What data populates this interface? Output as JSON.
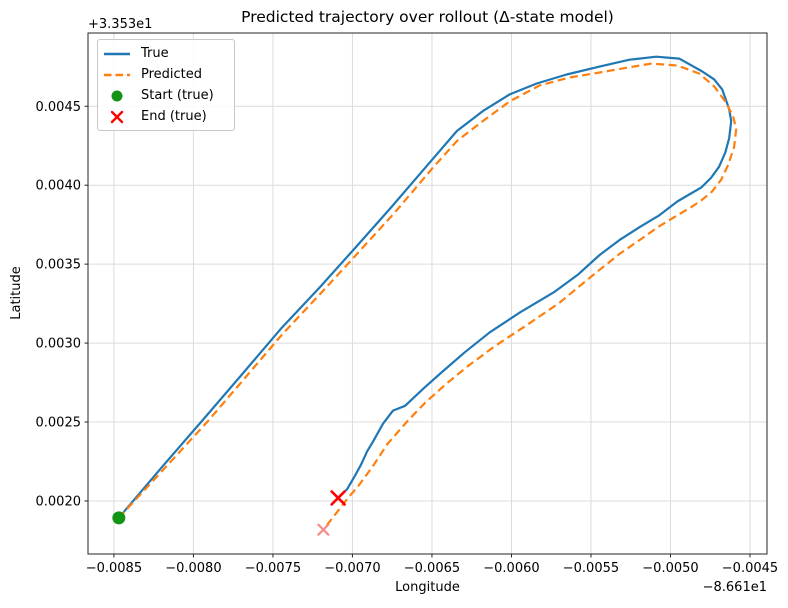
{
  "chart_data": {
    "type": "line",
    "title": "Predicted trajectory over rollout (Δ-state model)",
    "xlabel": "Longitude",
    "ylabel": "Latitude",
    "grid": true,
    "legend_position": "upper left",
    "x_axis": {
      "offset": "−8.661e1",
      "lim": [
        -0.008663,
        -0.004393
      ],
      "tick_values": [
        -0.0085,
        -0.008,
        -0.0075,
        -0.007,
        -0.0065,
        -0.006,
        -0.0055,
        -0.005,
        -0.0045
      ],
      "tick_labels": [
        "−0.0085",
        "−0.0080",
        "−0.0075",
        "−0.0070",
        "−0.0065",
        "−0.0060",
        "−0.0055",
        "−0.0050",
        "−0.0045"
      ]
    },
    "y_axis": {
      "offset": "+3.353e1",
      "lim": [
        0.001664,
        0.004964
      ],
      "tick_values": [
        0.002,
        0.0025,
        0.003,
        0.0035,
        0.004,
        0.0045
      ],
      "tick_labels": [
        "0.0020",
        "0.0025",
        "0.0030",
        "0.0035",
        "0.0040",
        "0.0045"
      ]
    },
    "series": [
      {
        "name": "True",
        "color": "#1f77b4",
        "line_style": "solid",
        "points": [
          [
            -0.008469,
            0.001893
          ],
          [
            -0.008193,
            0.00222
          ],
          [
            -0.007923,
            0.002534
          ],
          [
            -0.007704,
            0.002791
          ],
          [
            -0.007453,
            0.003087
          ],
          [
            -0.007202,
            0.003357
          ],
          [
            -0.006995,
            0.003589
          ],
          [
            -0.006751,
            0.003866
          ],
          [
            -0.006494,
            0.004167
          ],
          [
            -0.006343,
            0.004343
          ],
          [
            -0.00618,
            0.004469
          ],
          [
            -0.006011,
            0.004575
          ],
          [
            -0.005841,
            0.004644
          ],
          [
            -0.005653,
            0.004701
          ],
          [
            -0.005446,
            0.004751
          ],
          [
            -0.005258,
            0.004795
          ],
          [
            -0.005089,
            0.004814
          ],
          [
            -0.004945,
            0.004802
          ],
          [
            -0.0048,
            0.00472
          ],
          [
            -0.004725,
            0.00467
          ],
          [
            -0.004675,
            0.004607
          ],
          [
            -0.004631,
            0.004481
          ],
          [
            -0.004618,
            0.004406
          ],
          [
            -0.004631,
            0.004299
          ],
          [
            -0.004656,
            0.004205
          ],
          [
            -0.004694,
            0.004117
          ],
          [
            -0.004744,
            0.004048
          ],
          [
            -0.004807,
            0.003985
          ],
          [
            -0.004882,
            0.003941
          ],
          [
            -0.004957,
            0.003897
          ],
          [
            -0.00507,
            0.003809
          ],
          [
            -0.005195,
            0.003734
          ],
          [
            -0.005321,
            0.003652
          ],
          [
            -0.005446,
            0.003558
          ],
          [
            -0.005584,
            0.003432
          ],
          [
            -0.005729,
            0.003325
          ],
          [
            -0.005948,
            0.003193
          ],
          [
            -0.006136,
            0.003068
          ],
          [
            -0.006293,
            0.002942
          ],
          [
            -0.006437,
            0.002817
          ],
          [
            -0.006556,
            0.00271
          ],
          [
            -0.006669,
            0.002603
          ],
          [
            -0.006745,
            0.002572
          ],
          [
            -0.006807,
            0.00249
          ],
          [
            -0.00687,
            0.002377
          ],
          [
            -0.006908,
            0.002314
          ],
          [
            -0.006945,
            0.002232
          ],
          [
            -0.006989,
            0.002151
          ],
          [
            -0.007033,
            0.002075
          ],
          [
            -0.00709,
            0.002019
          ]
        ]
      },
      {
        "name": "Predicted",
        "color": "#ff7f0e",
        "line_style": "dashed",
        "points": [
          [
            -0.008469,
            0.001893
          ],
          [
            -0.008187,
            0.002201
          ],
          [
            -0.007917,
            0.002496
          ],
          [
            -0.007697,
            0.002754
          ],
          [
            -0.007447,
            0.003049
          ],
          [
            -0.007196,
            0.003319
          ],
          [
            -0.006989,
            0.003545
          ],
          [
            -0.006738,
            0.003822
          ],
          [
            -0.006494,
            0.004111
          ],
          [
            -0.006343,
            0.00428
          ],
          [
            -0.00618,
            0.004406
          ],
          [
            -0.006011,
            0.004531
          ],
          [
            -0.005823,
            0.004632
          ],
          [
            -0.005635,
            0.004682
          ],
          [
            -0.005446,
            0.004714
          ],
          [
            -0.005271,
            0.004745
          ],
          [
            -0.00512,
            0.00477
          ],
          [
            -0.004957,
            0.004758
          ],
          [
            -0.004819,
            0.004707
          ],
          [
            -0.004725,
            0.004626
          ],
          [
            -0.004656,
            0.004531
          ],
          [
            -0.004606,
            0.004437
          ],
          [
            -0.004587,
            0.004355
          ],
          [
            -0.0046,
            0.004242
          ],
          [
            -0.004637,
            0.004129
          ],
          [
            -0.004681,
            0.004035
          ],
          [
            -0.004738,
            0.00396
          ],
          [
            -0.004807,
            0.003903
          ],
          [
            -0.004882,
            0.003853
          ],
          [
            -0.004957,
            0.003809
          ],
          [
            -0.00507,
            0.00374
          ],
          [
            -0.005195,
            0.003652
          ],
          [
            -0.005321,
            0.003564
          ],
          [
            -0.005446,
            0.003464
          ],
          [
            -0.005584,
            0.003351
          ],
          [
            -0.005697,
            0.003256
          ],
          [
            -0.005917,
            0.003105
          ],
          [
            -0.006105,
            0.00298
          ],
          [
            -0.006274,
            0.002854
          ],
          [
            -0.006418,
            0.002735
          ],
          [
            -0.006543,
            0.002622
          ],
          [
            -0.006656,
            0.002503
          ],
          [
            -0.006782,
            0.002358
          ],
          [
            -0.006876,
            0.002214
          ],
          [
            -0.006964,
            0.002094
          ],
          [
            -0.007033,
            0.002013
          ],
          [
            -0.007095,
            0.001931
          ],
          [
            -0.007183,
            0.001818
          ]
        ]
      }
    ],
    "markers": [
      {
        "name": "Start (true)",
        "shape": "circle",
        "color": "#149414",
        "point": [
          -0.008469,
          0.001893
        ]
      },
      {
        "name": "End (true)",
        "shape": "x",
        "color": "#ff0000",
        "point": [
          -0.00709,
          0.002019
        ]
      },
      {
        "name": "End (predicted)",
        "shape": "x",
        "color": "#f78c8c",
        "point": [
          -0.007183,
          0.001818
        ]
      }
    ]
  },
  "legend": {
    "items": [
      {
        "label": "True",
        "glyph": "solid-line",
        "color": "#1f77b4"
      },
      {
        "label": "Predicted",
        "glyph": "dashed-line",
        "color": "#ff7f0e"
      },
      {
        "label": "Start (true)",
        "glyph": "filled-circle",
        "color": "#149414"
      },
      {
        "label": "End (true)",
        "glyph": "x-cross",
        "color": "#ff0000"
      }
    ]
  },
  "style": {
    "grid_color": "#dcdcdc",
    "spine_color": "#262626",
    "background": "#ffffff"
  }
}
